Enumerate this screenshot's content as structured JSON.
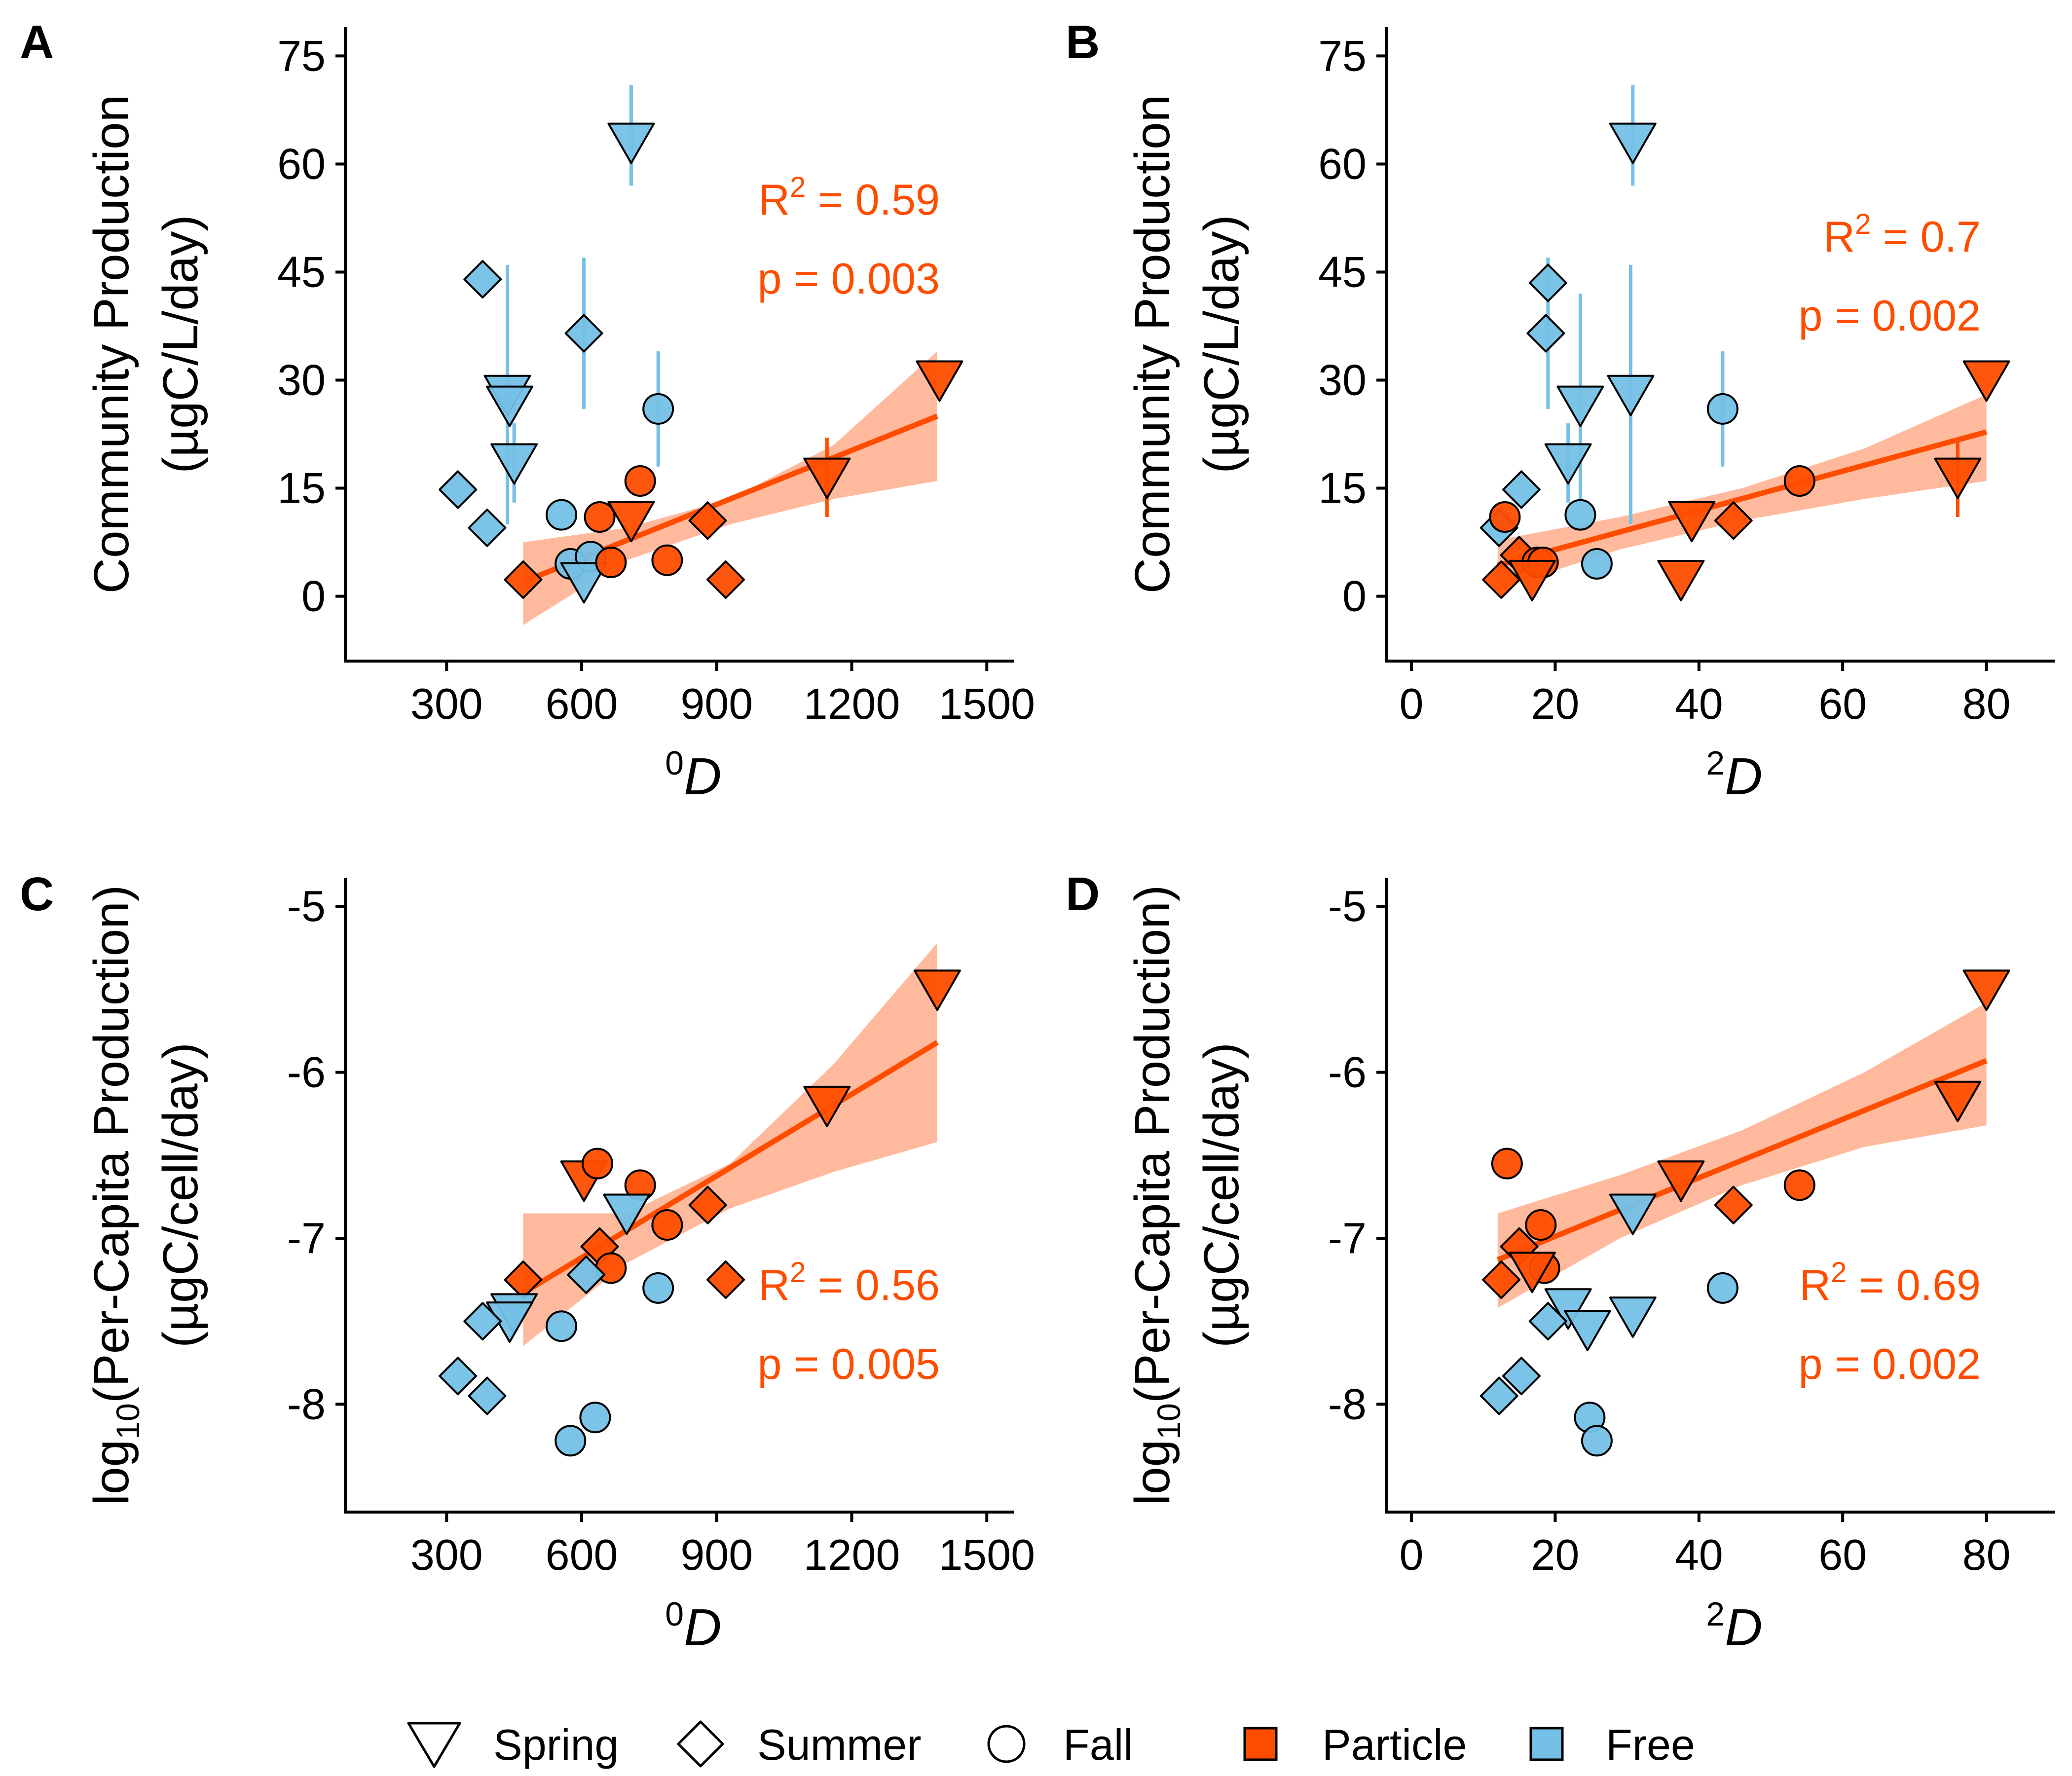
{
  "colors": {
    "particle": "#FF4D00",
    "free": "#74C0E6",
    "ribbon": "#FF8C5E",
    "fit": "#FF4D00",
    "stroke": "#000000"
  },
  "legend": {
    "items": [
      {
        "label": "Spring",
        "shape": "triangle-down",
        "fill": "none"
      },
      {
        "label": "Summer",
        "shape": "diamond",
        "fill": "none"
      },
      {
        "label": "Fall",
        "shape": "circle",
        "fill": "none"
      },
      {
        "label": "Particle",
        "shape": "square",
        "fill": "particle"
      },
      {
        "label": "Free",
        "shape": "square",
        "fill": "free"
      }
    ]
  },
  "chart_data": [
    {
      "panel": "A",
      "type": "scatter",
      "ylabel_line1": "Community Production",
      "ylabel_line2": "(µgC/L/day)",
      "xlabel_sup": "0",
      "xlabel": "D",
      "xlim": [
        75,
        1560
      ],
      "ylim": [
        -9,
        79
      ],
      "xticks": [
        300,
        600,
        900,
        1200,
        1500
      ],
      "yticks": [
        0,
        15,
        30,
        45,
        60,
        75
      ],
      "grid": false,
      "r2_text": "= 0.59",
      "p_text": "p = 0.003",
      "annot_pos": "top-right",
      "fit": {
        "x": [
          470,
          1390
        ],
        "y": [
          2.0,
          25.0
        ]
      },
      "ribbon": {
        "x": [
          470,
          700,
          930,
          1160,
          1390
        ],
        "lower": [
          -4,
          5,
          10,
          13.5,
          16
        ],
        "upper": [
          7.5,
          9.5,
          13.5,
          21,
          34
        ]
      },
      "points": [
        {
          "x": 710,
          "y": 63,
          "shape": "triangle-down",
          "group": "free",
          "err": [
            57,
            71
          ]
        },
        {
          "x": 380,
          "y": 44,
          "shape": "diamond",
          "group": "free"
        },
        {
          "x": 605,
          "y": 36.5,
          "shape": "diamond",
          "group": "free",
          "err": [
            26,
            47
          ]
        },
        {
          "x": 435,
          "y": 28,
          "shape": "triangle-down",
          "group": "free",
          "err": [
            10,
            46
          ]
        },
        {
          "x": 440,
          "y": 26.5,
          "shape": "triangle-down",
          "group": "free"
        },
        {
          "x": 770,
          "y": 26,
          "shape": "circle",
          "group": "free",
          "err": [
            18,
            34
          ]
        },
        {
          "x": 450,
          "y": 18.5,
          "shape": "triangle-down",
          "group": "free",
          "err": [
            13,
            24
          ]
        },
        {
          "x": 325,
          "y": 14.8,
          "shape": "diamond",
          "group": "free"
        },
        {
          "x": 555,
          "y": 11.3,
          "shape": "circle",
          "group": "free"
        },
        {
          "x": 390,
          "y": 9.5,
          "shape": "diamond",
          "group": "free"
        },
        {
          "x": 575,
          "y": 4.5,
          "shape": "circle",
          "group": "free"
        },
        {
          "x": 620,
          "y": 5.5,
          "shape": "circle",
          "group": "free"
        },
        {
          "x": 605,
          "y": 2.0,
          "shape": "triangle-down",
          "group": "free"
        },
        {
          "x": 1395,
          "y": 30,
          "shape": "triangle-down",
          "group": "particle"
        },
        {
          "x": 1145,
          "y": 16.5,
          "shape": "triangle-down",
          "group": "particle",
          "err": [
            11,
            22
          ]
        },
        {
          "x": 730,
          "y": 16,
          "shape": "circle",
          "group": "particle"
        },
        {
          "x": 640,
          "y": 11,
          "shape": "circle",
          "group": "particle"
        },
        {
          "x": 710,
          "y": 10.5,
          "shape": "triangle-down",
          "group": "particle"
        },
        {
          "x": 880,
          "y": 10.5,
          "shape": "diamond",
          "group": "particle"
        },
        {
          "x": 790,
          "y": 5,
          "shape": "circle",
          "group": "particle"
        },
        {
          "x": 665,
          "y": 4.7,
          "shape": "circle",
          "group": "particle"
        },
        {
          "x": 470,
          "y": 2.3,
          "shape": "diamond",
          "group": "particle"
        },
        {
          "x": 920,
          "y": 2.3,
          "shape": "diamond",
          "group": "particle"
        }
      ]
    },
    {
      "panel": "B",
      "type": "scatter",
      "ylabel_line1": "Community Production",
      "ylabel_line2": "(µgC/L/day)",
      "xlabel_sup": "2",
      "xlabel": "D",
      "xlim": [
        -3.5,
        89.5
      ],
      "ylim": [
        -9,
        79
      ],
      "xticks": [
        0,
        20,
        40,
        60,
        80
      ],
      "yticks": [
        0,
        15,
        30,
        45,
        60,
        75
      ],
      "grid": false,
      "r2_text": "= 0.7",
      "p_text": "p = 0.002",
      "annot_pos": "top-right",
      "fit": {
        "x": [
          12,
          80
        ],
        "y": [
          4.3,
          22.8
        ]
      },
      "ribbon": {
        "x": [
          12,
          29,
          46,
          63,
          80
        ],
        "lower": [
          1,
          6.5,
          10.5,
          13.5,
          16
        ],
        "upper": [
          7.8,
          11,
          15,
          20.5,
          28
        ]
      },
      "points": [
        {
          "x": 30.8,
          "y": 63,
          "shape": "triangle-down",
          "group": "free",
          "err": [
            57,
            71
          ]
        },
        {
          "x": 19,
          "y": 43.5,
          "shape": "diamond",
          "group": "free",
          "err": [
            26,
            47
          ]
        },
        {
          "x": 18.7,
          "y": 36.5,
          "shape": "diamond",
          "group": "free"
        },
        {
          "x": 30.5,
          "y": 28,
          "shape": "triangle-down",
          "group": "free",
          "err": [
            10,
            46
          ]
        },
        {
          "x": 23.5,
          "y": 26.5,
          "shape": "triangle-down",
          "group": "free",
          "err": [
            13,
            42
          ]
        },
        {
          "x": 43.3,
          "y": 26,
          "shape": "circle",
          "group": "free",
          "err": [
            18,
            34
          ]
        },
        {
          "x": 21.8,
          "y": 18.5,
          "shape": "triangle-down",
          "group": "free",
          "err": [
            13,
            24
          ]
        },
        {
          "x": 15.3,
          "y": 14.8,
          "shape": "diamond",
          "group": "free"
        },
        {
          "x": 23.5,
          "y": 11.3,
          "shape": "circle",
          "group": "free"
        },
        {
          "x": 12.2,
          "y": 9.5,
          "shape": "diamond",
          "group": "free"
        },
        {
          "x": 25.8,
          "y": 4.5,
          "shape": "circle",
          "group": "free"
        },
        {
          "x": 80,
          "y": 30,
          "shape": "triangle-down",
          "group": "particle"
        },
        {
          "x": 76,
          "y": 16.5,
          "shape": "triangle-down",
          "group": "particle",
          "err": [
            11,
            22
          ]
        },
        {
          "x": 54,
          "y": 16,
          "shape": "circle",
          "group": "particle"
        },
        {
          "x": 13,
          "y": 11,
          "shape": "circle",
          "group": "particle"
        },
        {
          "x": 39,
          "y": 10.5,
          "shape": "triangle-down",
          "group": "particle"
        },
        {
          "x": 44.8,
          "y": 10.5,
          "shape": "diamond",
          "group": "particle"
        },
        {
          "x": 15,
          "y": 5.7,
          "shape": "diamond",
          "group": "particle"
        },
        {
          "x": 17.5,
          "y": 4.7,
          "shape": "circle",
          "group": "particle"
        },
        {
          "x": 18.3,
          "y": 4.7,
          "shape": "circle",
          "group": "particle"
        },
        {
          "x": 16.8,
          "y": 2.3,
          "shape": "triangle-down",
          "group": "particle"
        },
        {
          "x": 12.5,
          "y": 2.3,
          "shape": "diamond",
          "group": "particle"
        },
        {
          "x": 37.5,
          "y": 2.3,
          "shape": "triangle-down",
          "group": "particle"
        }
      ]
    },
    {
      "panel": "C",
      "type": "scatter",
      "ylabel_pre": "log",
      "ylabel_sub": "10",
      "ylabel_post": "(Per-Capita Production)",
      "ylabel_line2": "(µgC/cell/day)",
      "xlabel_sup": "0",
      "xlabel": "D",
      "xlim": [
        75,
        1560
      ],
      "ylim": [
        -8.65,
        -4.83
      ],
      "xticks": [
        300,
        600,
        900,
        1200,
        1500
      ],
      "yticks": [
        -8,
        -7,
        -6,
        -5
      ],
      "grid": false,
      "r2_text": "= 0.56",
      "p_text": "p = 0.005",
      "annot_pos": "bottom-right",
      "fit": {
        "x": [
          470,
          1390
        ],
        "y": [
          -7.33,
          -5.82
        ]
      },
      "ribbon": {
        "x": [
          470,
          700,
          930,
          1160,
          1390
        ],
        "lower": [
          -7.65,
          -7.15,
          -6.82,
          -6.6,
          -6.42
        ],
        "upper": [
          -6.85,
          -6.85,
          -6.55,
          -5.95,
          -5.22
        ]
      },
      "points": [
        {
          "x": 1390,
          "y": -5.5,
          "shape": "triangle-down",
          "group": "particle"
        },
        {
          "x": 1145,
          "y": -6.2,
          "shape": "triangle-down",
          "group": "particle"
        },
        {
          "x": 605,
          "y": -6.65,
          "shape": "triangle-down",
          "group": "particle"
        },
        {
          "x": 635,
          "y": -6.55,
          "shape": "circle",
          "group": "particle"
        },
        {
          "x": 730,
          "y": -6.68,
          "shape": "circle",
          "group": "particle"
        },
        {
          "x": 880,
          "y": -6.8,
          "shape": "diamond",
          "group": "particle"
        },
        {
          "x": 790,
          "y": -6.92,
          "shape": "circle",
          "group": "particle"
        },
        {
          "x": 640,
          "y": -7.05,
          "shape": "diamond",
          "group": "particle"
        },
        {
          "x": 665,
          "y": -7.18,
          "shape": "circle",
          "group": "particle"
        },
        {
          "x": 470,
          "y": -7.25,
          "shape": "diamond",
          "group": "particle"
        },
        {
          "x": 920,
          "y": -7.25,
          "shape": "diamond",
          "group": "particle"
        },
        {
          "x": 700,
          "y": -6.85,
          "shape": "triangle-down",
          "group": "free"
        },
        {
          "x": 610,
          "y": -7.22,
          "shape": "diamond",
          "group": "free"
        },
        {
          "x": 770,
          "y": -7.3,
          "shape": "circle",
          "group": "free"
        },
        {
          "x": 450,
          "y": -7.45,
          "shape": "triangle-down",
          "group": "free"
        },
        {
          "x": 440,
          "y": -7.5,
          "shape": "triangle-down",
          "group": "free"
        },
        {
          "x": 380,
          "y": -7.5,
          "shape": "diamond",
          "group": "free"
        },
        {
          "x": 555,
          "y": -7.53,
          "shape": "circle",
          "group": "free"
        },
        {
          "x": 325,
          "y": -7.83,
          "shape": "diamond",
          "group": "free"
        },
        {
          "x": 390,
          "y": -7.95,
          "shape": "diamond",
          "group": "free"
        },
        {
          "x": 630,
          "y": -8.08,
          "shape": "circle",
          "group": "free"
        },
        {
          "x": 575,
          "y": -8.22,
          "shape": "circle",
          "group": "free"
        }
      ]
    },
    {
      "panel": "D",
      "type": "scatter",
      "ylabel_pre": "log",
      "ylabel_sub": "10",
      "ylabel_post": "(Per-Capita Production)",
      "ylabel_line2": "(µgC/cell/day)",
      "xlabel_sup": "2",
      "xlabel": "D",
      "xlim": [
        -3.5,
        89.5
      ],
      "ylim": [
        -8.65,
        -4.83
      ],
      "xticks": [
        0,
        20,
        40,
        60,
        80
      ],
      "yticks": [
        -8,
        -7,
        -6,
        -5
      ],
      "grid": false,
      "r2_text": "= 0.69",
      "p_text": "p = 0.002",
      "annot_pos": "bottom-right",
      "fit": {
        "x": [
          12,
          80
        ],
        "y": [
          -7.13,
          -5.93
        ]
      },
      "ribbon": {
        "x": [
          12,
          29,
          46,
          63,
          80
        ],
        "lower": [
          -7.42,
          -7.0,
          -6.68,
          -6.45,
          -6.32
        ],
        "upper": [
          -6.85,
          -6.62,
          -6.35,
          -6.0,
          -5.58
        ]
      },
      "points": [
        {
          "x": 80,
          "y": -5.5,
          "shape": "triangle-down",
          "group": "particle"
        },
        {
          "x": 76,
          "y": -6.17,
          "shape": "triangle-down",
          "group": "particle"
        },
        {
          "x": 54,
          "y": -6.68,
          "shape": "circle",
          "group": "particle"
        },
        {
          "x": 37.5,
          "y": -6.65,
          "shape": "triangle-down",
          "group": "particle"
        },
        {
          "x": 44.8,
          "y": -6.8,
          "shape": "diamond",
          "group": "particle"
        },
        {
          "x": 13.3,
          "y": -6.55,
          "shape": "circle",
          "group": "particle"
        },
        {
          "x": 18,
          "y": -6.92,
          "shape": "circle",
          "group": "particle"
        },
        {
          "x": 15,
          "y": -7.05,
          "shape": "diamond",
          "group": "particle"
        },
        {
          "x": 18.5,
          "y": -7.18,
          "shape": "circle",
          "group": "particle"
        },
        {
          "x": 16.8,
          "y": -7.2,
          "shape": "triangle-down",
          "group": "particle"
        },
        {
          "x": 12.5,
          "y": -7.25,
          "shape": "diamond",
          "group": "particle"
        },
        {
          "x": 30.8,
          "y": -6.85,
          "shape": "triangle-down",
          "group": "free"
        },
        {
          "x": 43.3,
          "y": -7.3,
          "shape": "circle",
          "group": "free"
        },
        {
          "x": 21.8,
          "y": -7.42,
          "shape": "triangle-down",
          "group": "free"
        },
        {
          "x": 30.8,
          "y": -7.47,
          "shape": "triangle-down",
          "group": "free"
        },
        {
          "x": 19,
          "y": -7.5,
          "shape": "diamond",
          "group": "free"
        },
        {
          "x": 24.5,
          "y": -7.55,
          "shape": "triangle-down",
          "group": "free"
        },
        {
          "x": 15.3,
          "y": -7.83,
          "shape": "diamond",
          "group": "free"
        },
        {
          "x": 12.2,
          "y": -7.95,
          "shape": "diamond",
          "group": "free"
        },
        {
          "x": 24.8,
          "y": -8.08,
          "shape": "circle",
          "group": "free"
        },
        {
          "x": 25.8,
          "y": -8.22,
          "shape": "circle",
          "group": "free"
        }
      ]
    }
  ]
}
